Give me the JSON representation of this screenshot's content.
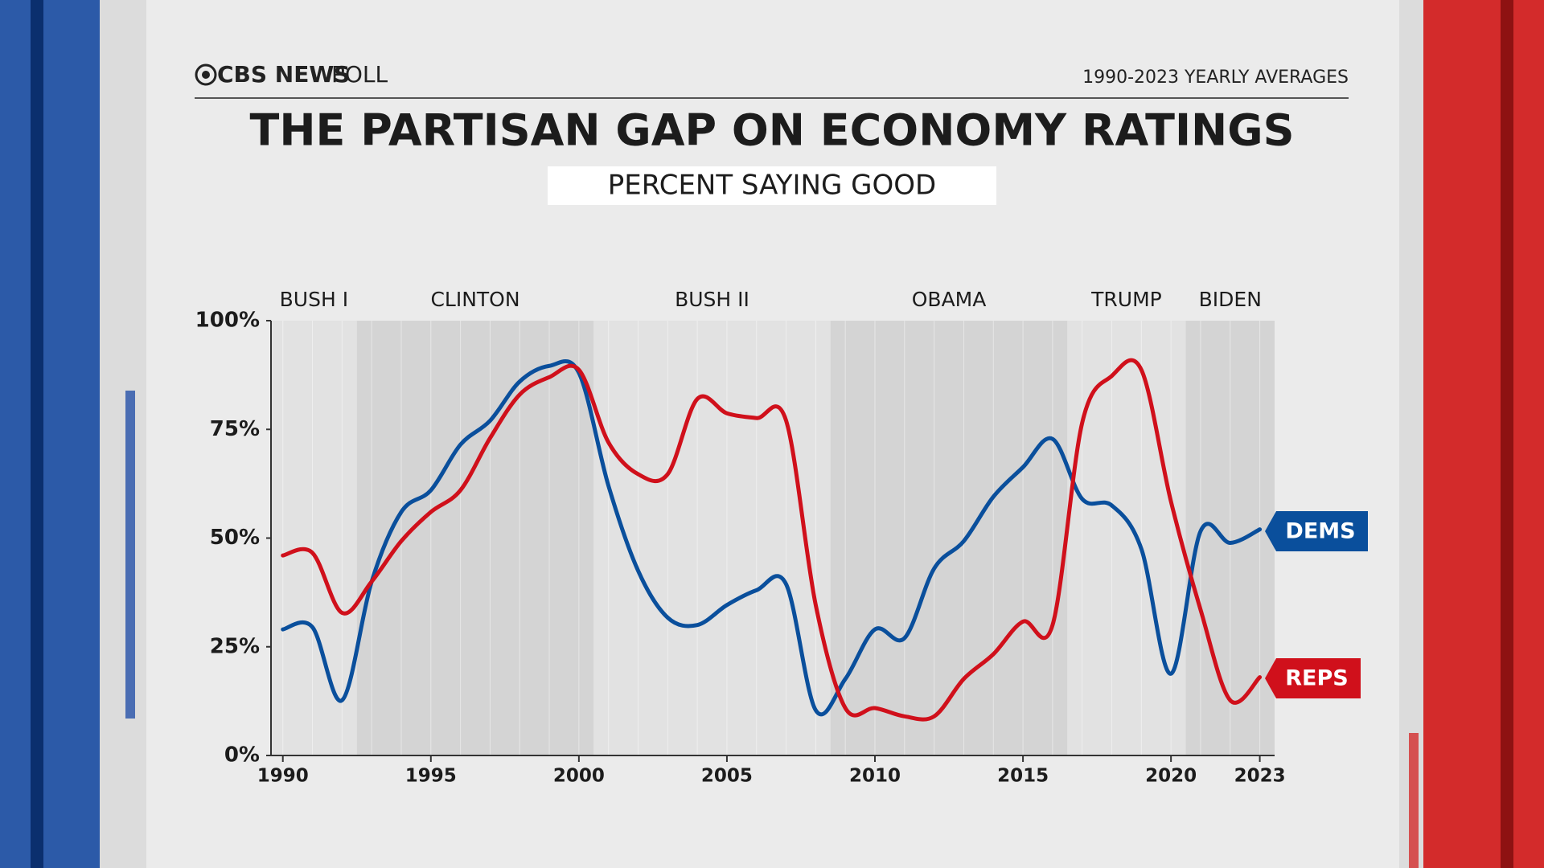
{
  "header": {
    "brand": "CBS NEWS",
    "brand_suffix": "POLL",
    "note": "1990-2023 YEARLY AVERAGES"
  },
  "chart_data": {
    "type": "line",
    "title": "THE PARTISAN GAP ON ECONOMY RATINGS",
    "subtitle": "PERCENT SAYING GOOD",
    "x": [
      1990,
      1991,
      1992,
      1993,
      1994,
      1995,
      1996,
      1997,
      1998,
      1999,
      2000,
      2001,
      2002,
      2003,
      2004,
      2005,
      2006,
      2007,
      2008,
      2009,
      2010,
      2011,
      2012,
      2013,
      2014,
      2015,
      2016,
      2017,
      2018,
      2019,
      2020,
      2021,
      2022,
      2023
    ],
    "series": [
      {
        "name": "DEMS",
        "color": "#0a4f9c",
        "values": [
          29,
          29.5,
          12.7,
          40,
          56,
          61,
          71.5,
          77,
          86,
          89.6,
          88,
          62,
          42.5,
          31.7,
          30,
          34.6,
          38,
          39.4,
          10.4,
          17.6,
          29,
          27,
          43,
          49.3,
          59.5,
          66.3,
          72.8,
          59,
          57.5,
          47.5,
          18.8,
          51.6,
          48.9,
          52
        ]
      },
      {
        "name": "REPS",
        "color": "#d0101b",
        "values": [
          46,
          46.6,
          32.8,
          40,
          49.3,
          56,
          61,
          73,
          83,
          87,
          88.7,
          72,
          64.7,
          64.7,
          82,
          78.7,
          77.6,
          77,
          34.6,
          10.9,
          10.9,
          9,
          9,
          17.6,
          23.3,
          30.8,
          30,
          76.5,
          87.3,
          88.7,
          58.4,
          33.5,
          12.7,
          18
        ]
      }
    ],
    "eras": [
      {
        "label": "BUSH I",
        "start": 1989.6,
        "end": 1992.5
      },
      {
        "label": "CLINTON",
        "start": 1992.5,
        "end": 2000.5
      },
      {
        "label": "BUSH II",
        "start": 2000.5,
        "end": 2008.5
      },
      {
        "label": "OBAMA",
        "start": 2008.5,
        "end": 2016.5
      },
      {
        "label": "TRUMP",
        "start": 2016.5,
        "end": 2020.5
      },
      {
        "label": "BIDEN",
        "start": 2020.5,
        "end": 2023.5
      }
    ],
    "xlim": [
      1989.6,
      2023.5
    ],
    "xticks": [
      1990,
      1995,
      2000,
      2005,
      2010,
      2015,
      2020,
      2023
    ],
    "ylim": [
      0,
      100
    ],
    "yticks": [
      {
        "value": 0,
        "label": "0%"
      },
      {
        "value": 25,
        "label": "25%"
      },
      {
        "value": 50,
        "label": "50%"
      },
      {
        "value": 75,
        "label": "75%"
      },
      {
        "value": 100,
        "label": "100%"
      }
    ]
  }
}
